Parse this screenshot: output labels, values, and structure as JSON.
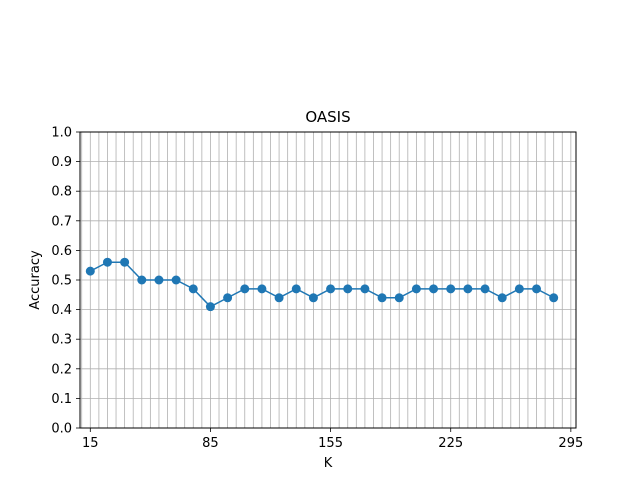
{
  "chart_data": {
    "type": "line",
    "title": "OASIS",
    "xlabel": "K",
    "ylabel": "Accuracy",
    "xlim": [
      9,
      298
    ],
    "ylim": [
      0.0,
      1.0
    ],
    "grid": true,
    "grid_x_spacing": 5,
    "xticks": [
      15,
      85,
      155,
      225,
      295
    ],
    "xtick_labels": [
      "15",
      "85",
      "155",
      "225",
      "295"
    ],
    "yticks": [
      0.0,
      0.1,
      0.2,
      0.3,
      0.4,
      0.5,
      0.6,
      0.7,
      0.8,
      0.9,
      1.0
    ],
    "ytick_labels": [
      "0.0",
      "0.1",
      "0.2",
      "0.3",
      "0.4",
      "0.5",
      "0.6",
      "0.7",
      "0.8",
      "0.9",
      "1.0"
    ],
    "series": [
      {
        "x": [
          15,
          25,
          35,
          45,
          55,
          65,
          75,
          85,
          95,
          105,
          115,
          125,
          135,
          145,
          155,
          165,
          175,
          185,
          195,
          205,
          215,
          225,
          235,
          245,
          255,
          265,
          275,
          285
        ],
        "y": [
          0.53,
          0.56,
          0.56,
          0.5,
          0.5,
          0.5,
          0.47,
          0.41,
          0.44,
          0.47,
          0.47,
          0.44,
          0.47,
          0.44,
          0.47,
          0.47,
          0.47,
          0.44,
          0.44,
          0.47,
          0.47,
          0.47,
          0.47,
          0.47,
          0.44,
          0.47,
          0.47,
          0.44
        ],
        "color": "#1f77b4"
      }
    ]
  }
}
